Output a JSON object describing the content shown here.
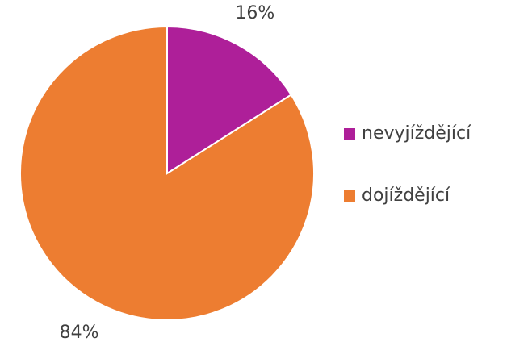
{
  "chart_data": {
    "type": "pie",
    "categories": [
      "nevyjíždějící",
      "dojíždějící"
    ],
    "values": [
      16,
      84
    ],
    "value_labels": [
      "16%",
      "84%"
    ],
    "colors": [
      "#ae1f99",
      "#ed7d31"
    ],
    "legend": "right"
  }
}
